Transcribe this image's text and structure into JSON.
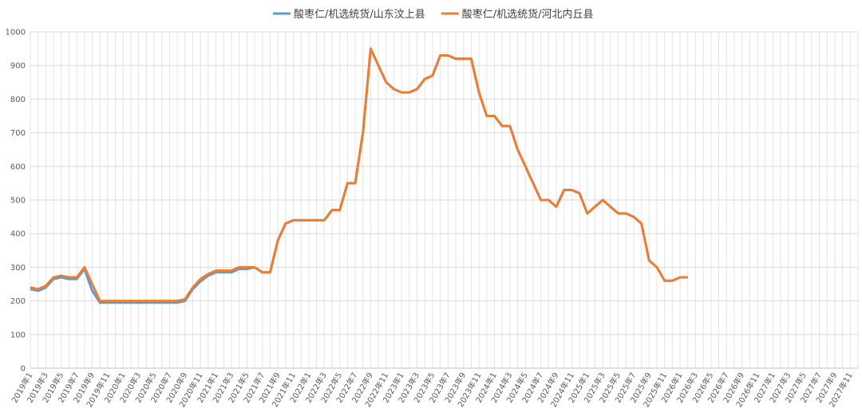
{
  "chart_data": {
    "type": "line",
    "categories": [
      "2019年1",
      null,
      "2019年3",
      null,
      "2019年5",
      null,
      "2019年7",
      null,
      "2019年9",
      null,
      "2019年11",
      null,
      "2020年1",
      null,
      "2020年3",
      null,
      "2020年5",
      null,
      "2020年7",
      null,
      "2020年9",
      null,
      "2020年11",
      null,
      "2021年1",
      null,
      "2021年3",
      null,
      "2021年5",
      null,
      "2021年7",
      null,
      "2021年9",
      null,
      "2021年11",
      null,
      "2022年1",
      null,
      "2022年3",
      null,
      "2022年5",
      null,
      "2022年7",
      null,
      "2022年9",
      null,
      "2022年11",
      null,
      "2023年1",
      null,
      "2023年3",
      null,
      "2023年5",
      null,
      "2023年7",
      null,
      "2023年9",
      null,
      "2023年11",
      null,
      "2024年1",
      null,
      "2024年3",
      null,
      "2024年5",
      null,
      "2024年7",
      null,
      "2024年9",
      null,
      "2024年11",
      null,
      "2025年1",
      null,
      "2025年3",
      null,
      "2025年5",
      null,
      "2025年7",
      null,
      "2025年9",
      null,
      "2025年11",
      null,
      "2026年1",
      null,
      "2026年3",
      null,
      "2026年5",
      null,
      "2026年7",
      null,
      "2026年9",
      null,
      "2026年11",
      null,
      "2027年1",
      null,
      "2027年3",
      null,
      "2027年5",
      null,
      "2027年7",
      null,
      "2027年9",
      null,
      "2027年11",
      null
    ],
    "series": [
      {
        "name": "酸枣仁/机选统货/山东汶上县",
        "color": "#5b9bd5",
        "values": [
          235,
          230,
          240,
          265,
          270,
          265,
          265,
          295,
          230,
          195,
          195,
          195,
          195,
          195,
          195,
          195,
          195,
          195,
          195,
          195,
          200,
          235,
          258,
          275,
          285,
          285,
          285,
          295,
          295,
          300,
          285,
          285,
          380,
          430,
          440,
          440,
          440,
          440,
          440,
          470,
          470,
          550,
          550,
          700,
          950,
          900,
          850,
          830,
          820,
          820,
          830,
          860,
          870,
          930,
          930,
          920,
          920,
          920,
          820,
          750,
          750,
          720,
          720,
          650,
          600,
          550,
          500,
          500,
          480,
          530,
          530,
          520,
          460,
          480,
          500,
          480,
          460,
          460,
          450,
          430,
          320,
          300,
          260,
          260,
          270,
          270,
          null,
          null,
          null,
          null,
          null,
          null,
          null,
          null,
          null,
          null,
          null,
          null,
          null,
          null,
          null,
          null,
          null,
          null,
          null,
          null,
          null,
          null
        ]
      },
      {
        "name": "酸枣仁/机选统货/河北内丘县",
        "color": "#ed7d31",
        "values": [
          240,
          235,
          245,
          270,
          275,
          270,
          270,
          300,
          250,
          200,
          200,
          200,
          200,
          200,
          200,
          200,
          200,
          200,
          200,
          200,
          205,
          240,
          265,
          280,
          290,
          290,
          290,
          300,
          300,
          300,
          285,
          285,
          380,
          430,
          440,
          440,
          440,
          440,
          440,
          470,
          470,
          550,
          550,
          700,
          950,
          900,
          850,
          830,
          820,
          820,
          830,
          860,
          870,
          930,
          930,
          920,
          920,
          920,
          820,
          750,
          750,
          720,
          720,
          650,
          600,
          550,
          500,
          500,
          480,
          530,
          530,
          520,
          460,
          480,
          500,
          480,
          460,
          460,
          450,
          430,
          320,
          300,
          260,
          260,
          270,
          270,
          null,
          null,
          null,
          null,
          null,
          null,
          null,
          null,
          null,
          null,
          null,
          null,
          null,
          null,
          null,
          null,
          null,
          null,
          null,
          null,
          null,
          null
        ]
      }
    ],
    "ylim": [
      0,
      1000
    ],
    "yticks": [
      0,
      100,
      200,
      300,
      400,
      500,
      600,
      700,
      800,
      900,
      1000
    ],
    "grid": true,
    "legend": "top"
  }
}
